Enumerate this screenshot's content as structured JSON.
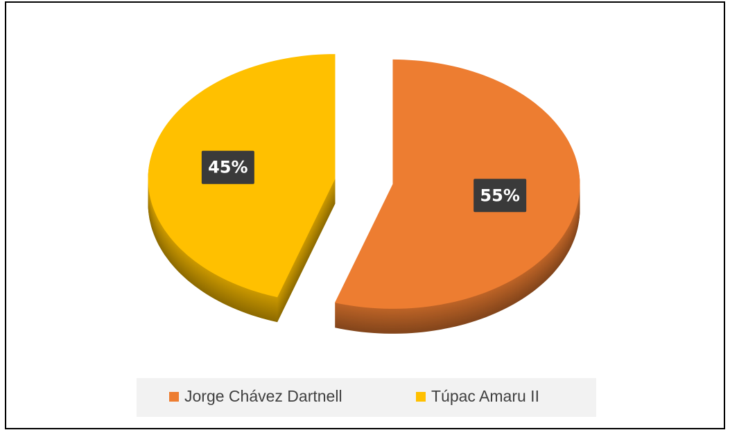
{
  "chart_data": {
    "type": "pie",
    "categories": [
      "Jorge Chávez Dartnell",
      "Túpac Amaru II"
    ],
    "values": [
      55,
      45
    ],
    "value_labels": [
      "55%",
      "45%"
    ],
    "colors": [
      "#ed7d31",
      "#ffc000"
    ],
    "legend": "bottom"
  }
}
